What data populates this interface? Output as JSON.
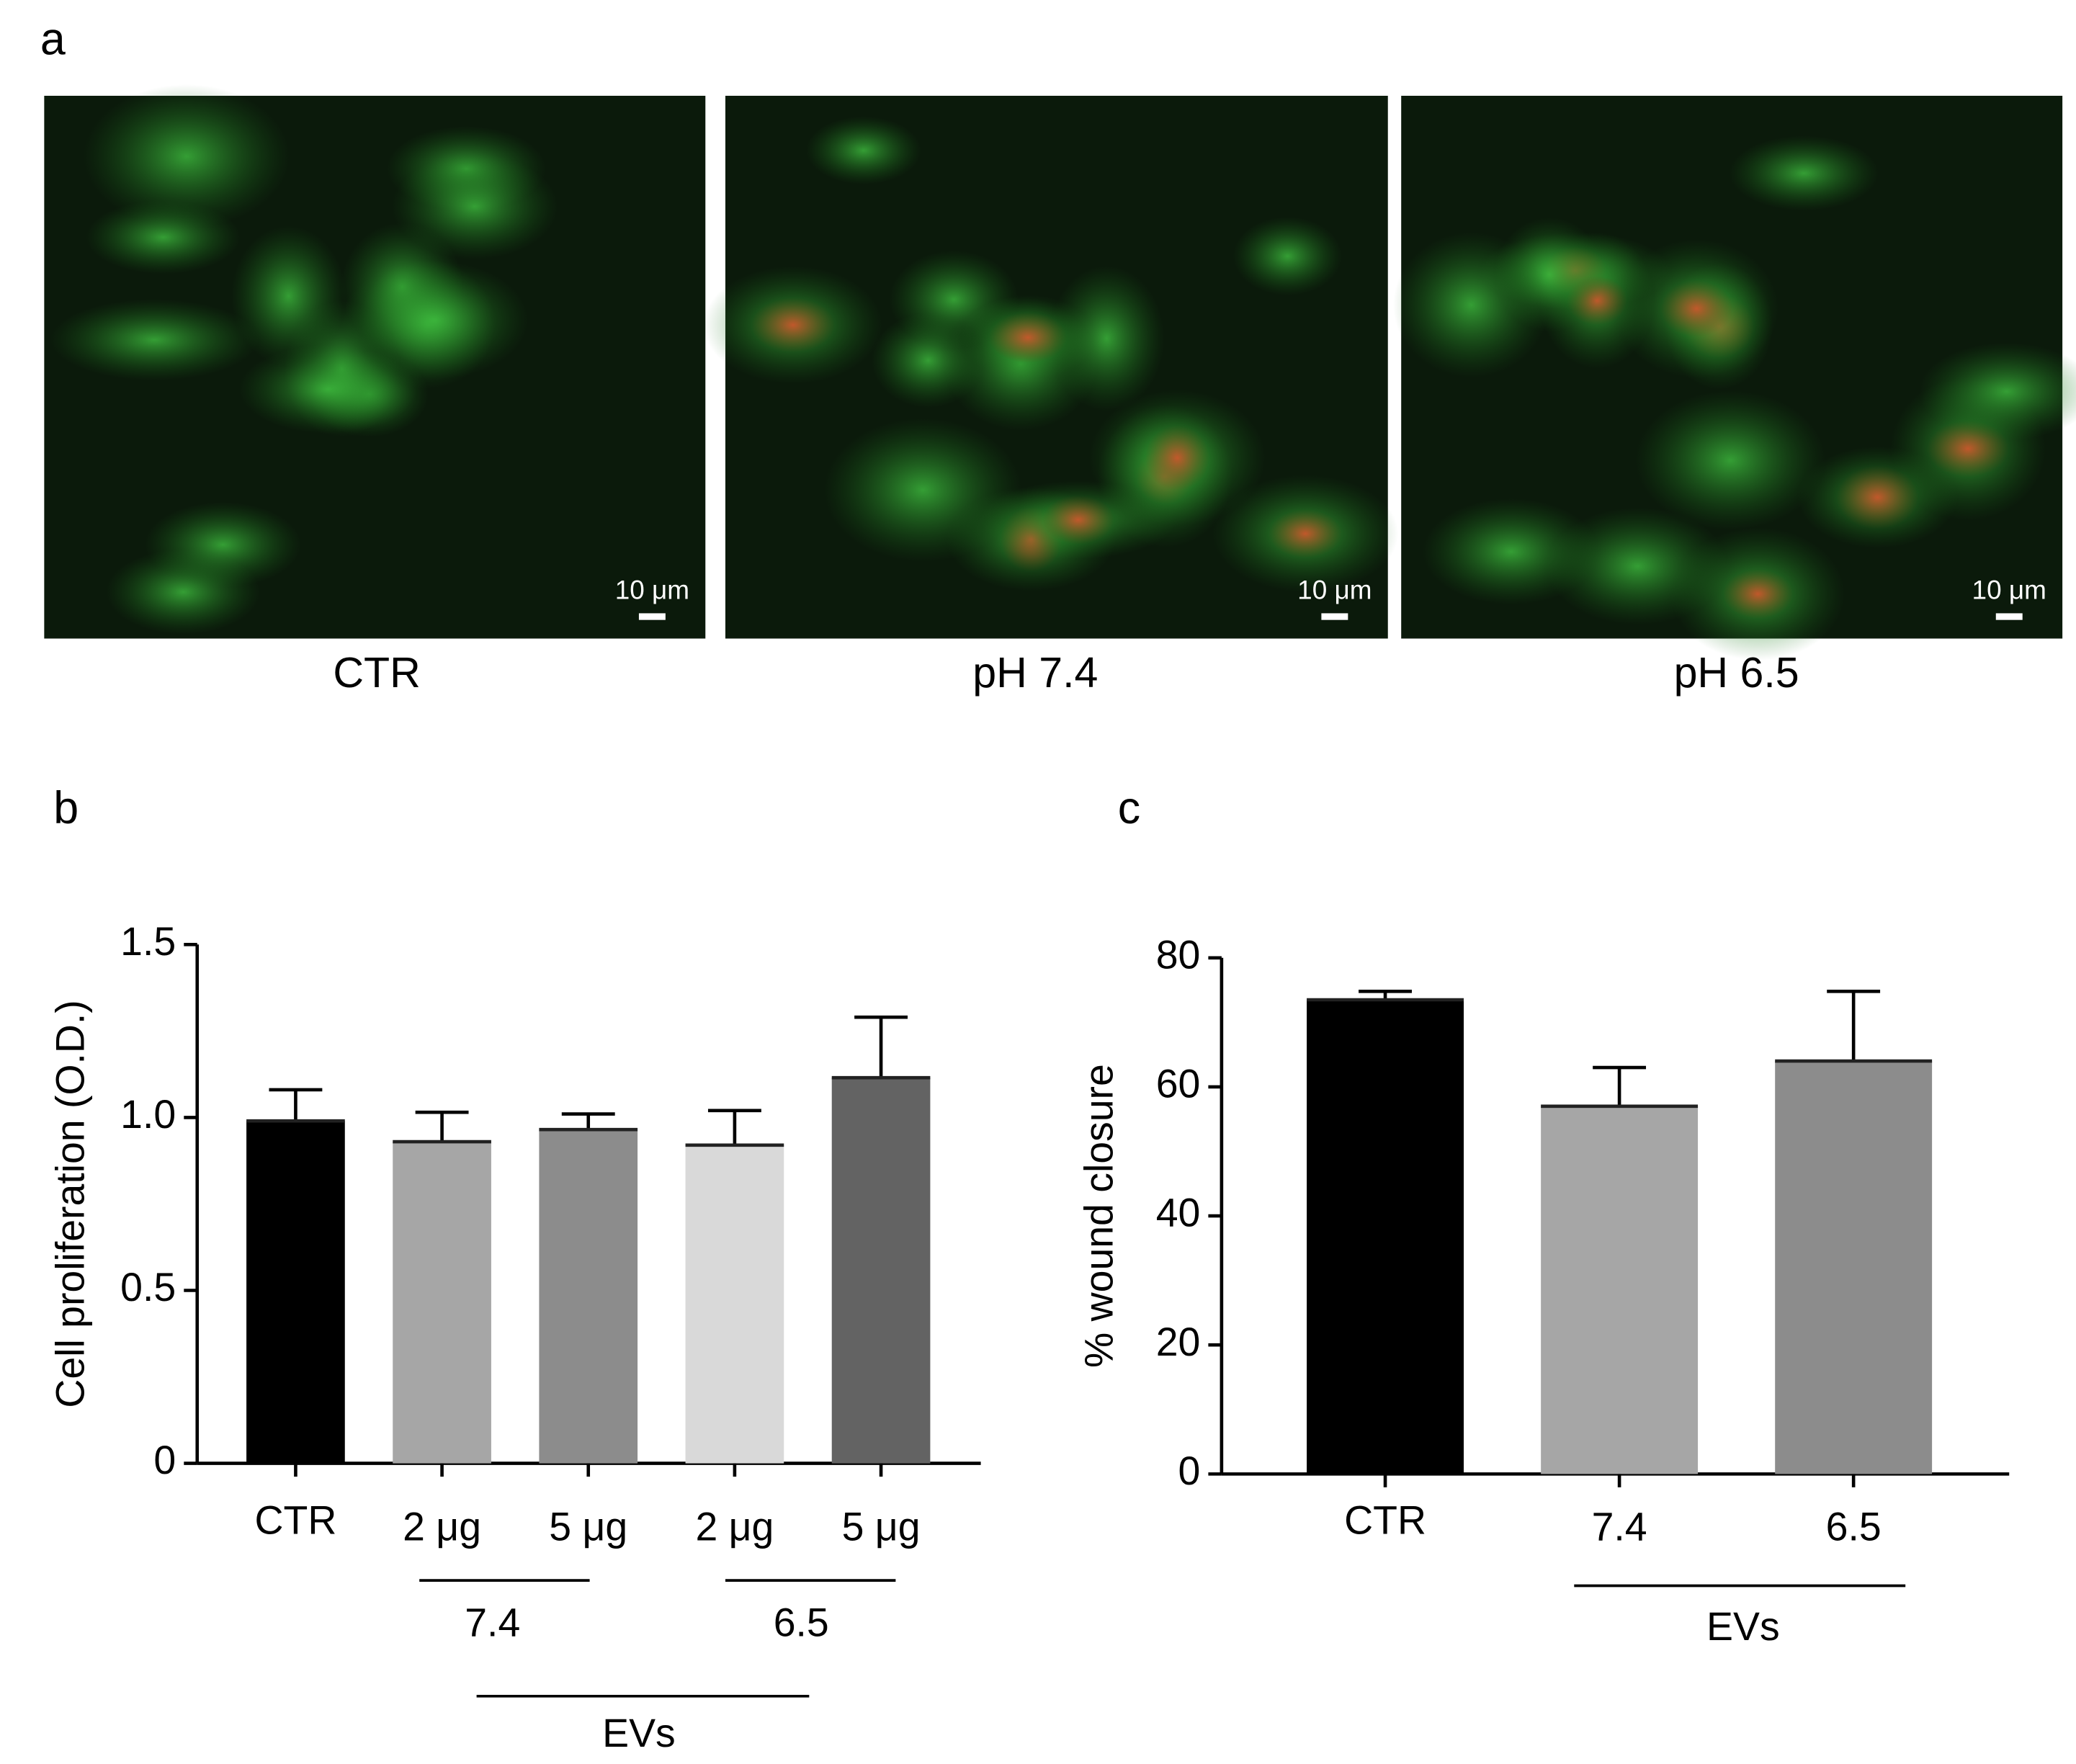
{
  "panels": {
    "a": {
      "label": "a",
      "images": [
        {
          "caption": "CTR",
          "scale_bar": "10 μm"
        },
        {
          "caption": "pH 7.4",
          "scale_bar": "10 μm"
        },
        {
          "caption": "pH 6.5",
          "scale_bar": "10 μm"
        }
      ]
    }
  },
  "chart_data": [
    {
      "type": "bar",
      "panel_label": "b",
      "ylabel": "Cell proliferation (O.D.)",
      "categories": [
        "CTR",
        "2 μg",
        "5 μg",
        "2 μg",
        "5 μg"
      ],
      "values": [
        0.99,
        0.93,
        0.965,
        0.92,
        1.115
      ],
      "errors": [
        0.09,
        0.085,
        0.045,
        0.1,
        0.175
      ],
      "colors": [
        "#000000",
        "#a6a6a6",
        "#8c8c8c",
        "#d9d9d9",
        "#636363"
      ],
      "groups": [
        {
          "label": "7.4"
        },
        {
          "label": "6.5"
        }
      ],
      "group_label": "EVs",
      "ylim": [
        0,
        1.5
      ],
      "yticks": [
        0,
        0.5,
        {
          "value": 1,
          "label": "1.0"
        },
        1.5
      ]
    },
    {
      "type": "bar",
      "panel_label": "c",
      "ylabel": "% wound closure",
      "categories": [
        "CTR",
        "7.4",
        "6.5"
      ],
      "values": [
        73.5,
        57,
        64
      ],
      "errors": [
        1.3,
        6,
        10.8
      ],
      "colors": [
        "#000000",
        "#a6a6a6",
        "#8c8c8c"
      ],
      "group_label": "EVs",
      "ylim": [
        0,
        80
      ],
      "yticks": [
        0,
        20,
        40,
        60,
        80
      ]
    }
  ]
}
